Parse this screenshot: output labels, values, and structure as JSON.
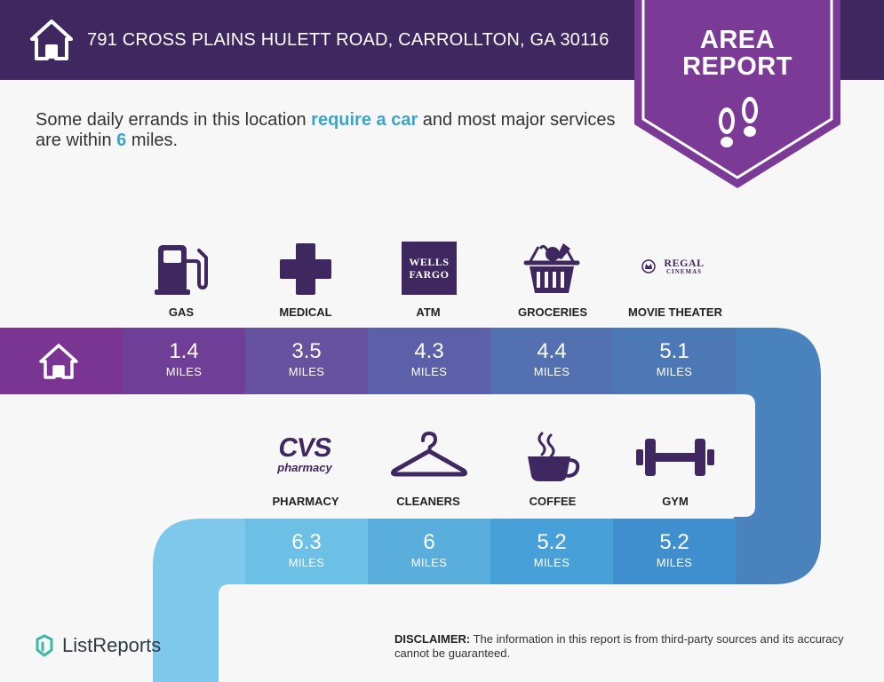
{
  "header": {
    "address": "791 CROSS PLAINS HULETT ROAD, CARROLLTON, GA 30116"
  },
  "badge": {
    "line1": "AREA",
    "line2": "REPORT"
  },
  "summary": {
    "part1": "Some daily errands in this location ",
    "highlight1": "require a car",
    "part2": " and most major services are within ",
    "highlight2": "6",
    "part3": " miles."
  },
  "unit_label": "MILES",
  "row1": [
    {
      "category": "GAS",
      "distance": "1.4",
      "icon": "gas-pump-icon"
    },
    {
      "category": "MEDICAL",
      "distance": "3.5",
      "icon": "medical-cross-icon"
    },
    {
      "category": "ATM",
      "distance": "4.3",
      "icon": "wells-fargo-logo",
      "logo_line1": "WELLS",
      "logo_line2": "FARGO"
    },
    {
      "category": "GROCERIES",
      "distance": "4.4",
      "icon": "grocery-basket-icon"
    },
    {
      "category": "MOVIE THEATER",
      "distance": "5.1",
      "icon": "regal-cinemas-logo",
      "logo_line1": "REGAL",
      "logo_line2": "CINEMAS"
    }
  ],
  "row2": [
    {
      "category": "PHARMACY",
      "distance": "6.3",
      "icon": "cvs-pharmacy-logo",
      "logo_line1": "CVS",
      "logo_line2": "pharmacy"
    },
    {
      "category": "CLEANERS",
      "distance": "6",
      "icon": "hanger-icon"
    },
    {
      "category": "COFFEE",
      "distance": "5.2",
      "icon": "coffee-cup-icon"
    },
    {
      "category": "GYM",
      "distance": "5.2",
      "icon": "dumbbell-icon"
    }
  ],
  "brand": {
    "name": "ListReports"
  },
  "disclaimer": {
    "label": "DISCLAIMER:",
    "text": " The information in this report is from third-party sources and its accuracy cannot be guaranteed."
  },
  "colors": {
    "header": "#3f2760",
    "badge": "#7b3a96",
    "row1": [
      "#7a3593",
      "#6f3f98",
      "#6752a0",
      "#5c60a8",
      "#5370b1",
      "#4a82bd"
    ],
    "row2": [
      "#6cc0e5",
      "#5aaedc",
      "#47a0d8",
      "#3f8fcf",
      "#3a87c8"
    ]
  }
}
